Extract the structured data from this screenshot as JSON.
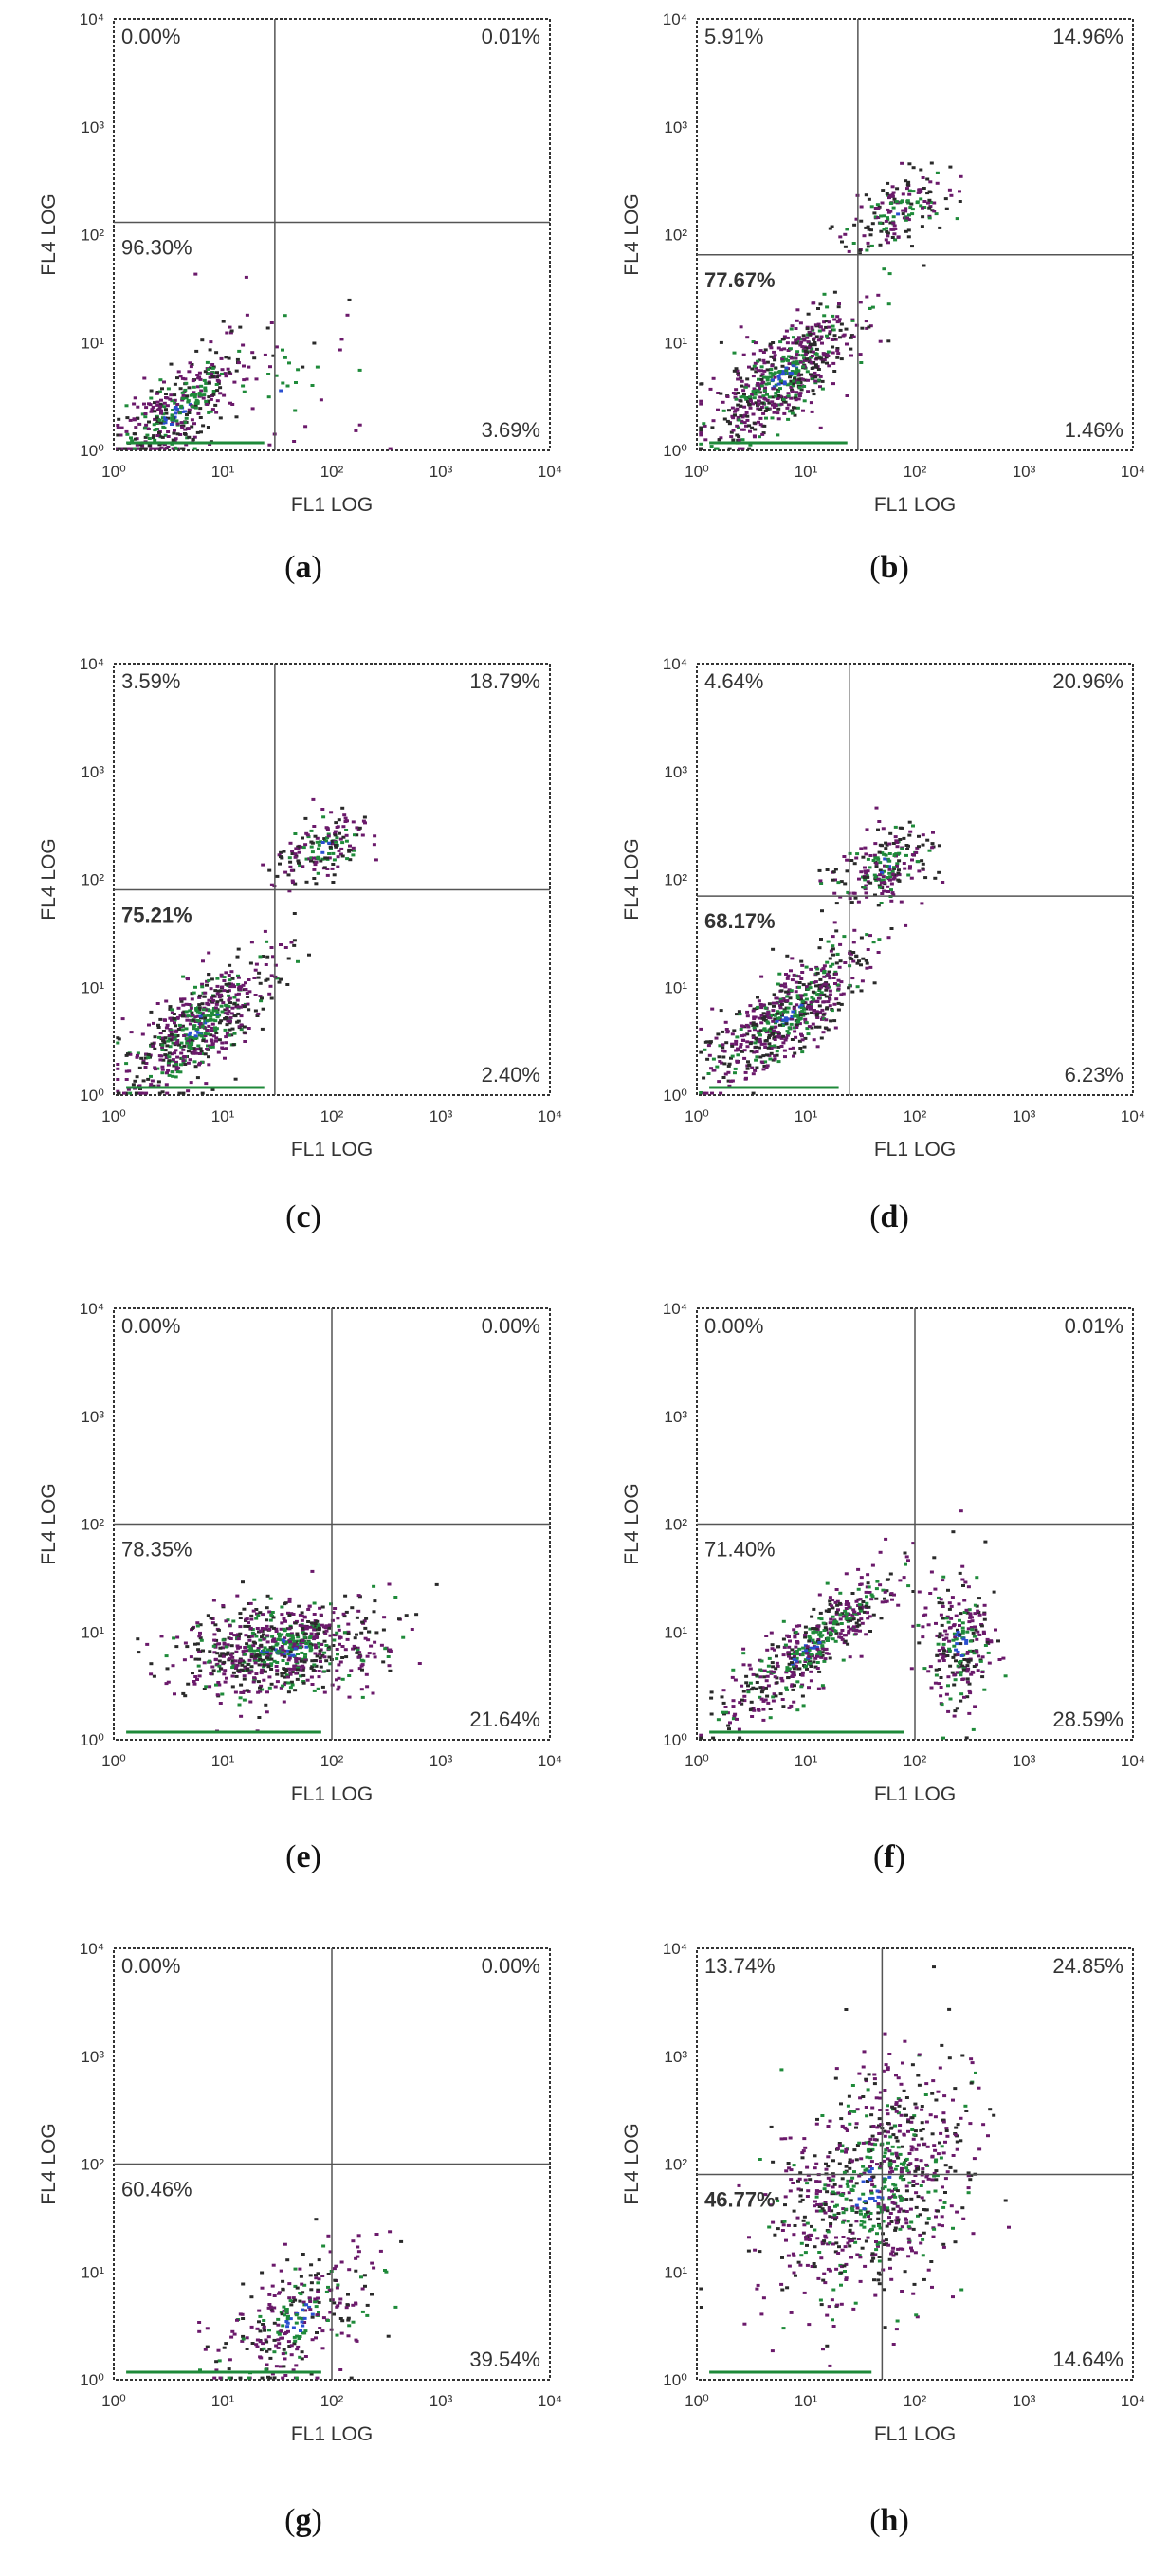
{
  "chart_data": [
    {
      "id": "a",
      "type": "scatter",
      "caption_letter": "a",
      "xlabel": "FL1 LOG",
      "ylabel": "FL4 LOG",
      "xlim": [
        1,
        10000
      ],
      "ylim": [
        1,
        10000
      ],
      "gate": {
        "x": 30,
        "y": 130
      },
      "quadrants": {
        "ul": "0.00%",
        "ur": "0.01%",
        "ll": "96.30%",
        "lr": "3.69%"
      },
      "clusters": [
        {
          "cx": 3.5,
          "cy": 2.2,
          "sx": 0.32,
          "sy": 0.3,
          "rho": 0.75,
          "n": 420
        },
        {
          "cx": 40,
          "cy": 5,
          "sx": 0.45,
          "sy": 0.45,
          "rho": 0.0,
          "n": 45
        }
      ],
      "x_ticks": [
        "10⁰",
        "10¹",
        "10²",
        "10³",
        "10⁴"
      ],
      "y_ticks": [
        "10⁰",
        "10¹",
        "10²",
        "10³",
        "10⁴"
      ]
    },
    {
      "id": "b",
      "type": "scatter",
      "caption_letter": "b",
      "xlabel": "FL1 LOG",
      "ylabel": "FL4 LOG",
      "xlim": [
        1,
        10000
      ],
      "ylim": [
        1,
        10000
      ],
      "gate": {
        "x": 30,
        "y": 65
      },
      "quadrants": {
        "ul": "5.91%",
        "ur": "14.96%",
        "ll": "77.67%",
        "lr": "1.46%"
      },
      "clusters": [
        {
          "cx": 6,
          "cy": 5,
          "sx": 0.35,
          "sy": 0.32,
          "rho": 0.75,
          "n": 650
        },
        {
          "cx": 70,
          "cy": 170,
          "sx": 0.25,
          "sy": 0.18,
          "rho": 0.5,
          "n": 180
        }
      ],
      "x_ticks": [
        "10⁰",
        "10¹",
        "10²",
        "10³",
        "10⁴"
      ],
      "y_ticks": [
        "10⁰",
        "10¹",
        "10²",
        "10³",
        "10⁴"
      ]
    },
    {
      "id": "c",
      "type": "scatter",
      "caption_letter": "c",
      "xlabel": "FL1 LOG",
      "ylabel": "FL4 LOG",
      "xlim": [
        1,
        10000
      ],
      "ylim": [
        1,
        10000
      ],
      "gate": {
        "x": 30,
        "y": 80
      },
      "quadrants": {
        "ul": "3.59%",
        "ur": "18.79%",
        "ll": "75.21%",
        "lr": "2.40%"
      },
      "clusters": [
        {
          "cx": 6,
          "cy": 4.5,
          "sx": 0.35,
          "sy": 0.32,
          "rho": 0.75,
          "n": 620
        },
        {
          "cx": 80,
          "cy": 200,
          "sx": 0.22,
          "sy": 0.16,
          "rho": 0.4,
          "n": 170
        }
      ],
      "x_ticks": [
        "10⁰",
        "10¹",
        "10²",
        "10³",
        "10⁴"
      ],
      "y_ticks": [
        "10⁰",
        "10¹",
        "10²",
        "10³",
        "10⁴"
      ]
    },
    {
      "id": "d",
      "type": "scatter",
      "caption_letter": "d",
      "xlabel": "FL1 LOG",
      "ylabel": "FL4 LOG",
      "xlim": [
        1,
        10000
      ],
      "ylim": [
        1,
        10000
      ],
      "gate": {
        "x": 25,
        "y": 70
      },
      "quadrants": {
        "ul": "4.64%",
        "ur": "20.96%",
        "ll": "68.17%",
        "lr": "6.23%"
      },
      "clusters": [
        {
          "cx": 7,
          "cy": 6,
          "sx": 0.35,
          "sy": 0.32,
          "rho": 0.75,
          "n": 620
        },
        {
          "cx": 50,
          "cy": 140,
          "sx": 0.25,
          "sy": 0.2,
          "rho": 0.5,
          "n": 220
        }
      ],
      "x_ticks": [
        "10⁰",
        "10¹",
        "10²",
        "10³",
        "10⁴"
      ],
      "y_ticks": [
        "10⁰",
        "10¹",
        "10²",
        "10³",
        "10⁴"
      ]
    },
    {
      "id": "e",
      "type": "scatter",
      "caption_letter": "e",
      "xlabel": "FL1 LOG",
      "ylabel": "FL4 LOG",
      "xlim": [
        1,
        10000
      ],
      "ylim": [
        1,
        10000
      ],
      "gate": {
        "x": 100,
        "y": 100
      },
      "quadrants": {
        "ul": "0.00%",
        "ur": "0.00%",
        "ll": "78.35%",
        "lr": "21.64%"
      },
      "clusters": [
        {
          "cx": 35,
          "cy": 7,
          "sx": 0.45,
          "sy": 0.22,
          "rho": 0.2,
          "n": 800
        }
      ],
      "x_ticks": [
        "10⁰",
        "10¹",
        "10²",
        "10³",
        "10⁴"
      ],
      "y_ticks": [
        "10⁰",
        "10¹",
        "10²",
        "10³",
        "10⁴"
      ]
    },
    {
      "id": "f",
      "type": "scatter",
      "caption_letter": "f",
      "xlabel": "FL1 LOG",
      "ylabel": "FL4 LOG",
      "xlim": [
        1,
        10000
      ],
      "ylim": [
        1,
        10000
      ],
      "gate": {
        "x": 100,
        "y": 100
      },
      "quadrants": {
        "ul": "0.00%",
        "ur": "0.01%",
        "ll": "71.40%",
        "lr": "28.59%"
      },
      "clusters": [
        {
          "cx": 10,
          "cy": 7,
          "sx": 0.42,
          "sy": 0.38,
          "rho": 0.9,
          "n": 520
        },
        {
          "cx": 250,
          "cy": 8,
          "sx": 0.15,
          "sy": 0.3,
          "rho": 0.0,
          "n": 260
        }
      ],
      "x_ticks": [
        "10⁰",
        "10¹",
        "10²",
        "10³",
        "10⁴"
      ],
      "y_ticks": [
        "10⁰",
        "10¹",
        "10²",
        "10³",
        "10⁴"
      ]
    },
    {
      "id": "g",
      "type": "scatter",
      "caption_letter": "g",
      "xlabel": "FL1 LOG",
      "ylabel": "FL4 LOG",
      "xlim": [
        1,
        10000
      ],
      "ylim": [
        1,
        10000
      ],
      "gate": {
        "x": 100,
        "y": 100
      },
      "quadrants": {
        "ul": "0.00%",
        "ur": "0.00%",
        "ll": "60.46%",
        "lr": "39.54%"
      },
      "clusters": [
        {
          "cx": 50,
          "cy": 4,
          "sx": 0.35,
          "sy": 0.32,
          "rho": 0.5,
          "n": 320
        }
      ],
      "x_ticks": [
        "10⁰",
        "10¹",
        "10²",
        "10³",
        "10⁴"
      ],
      "y_ticks": [
        "10⁰",
        "10¹",
        "10²",
        "10³",
        "10⁴"
      ]
    },
    {
      "id": "h",
      "type": "scatter",
      "caption_letter": "h",
      "xlabel": "FL1 LOG",
      "ylabel": "FL4 LOG",
      "xlim": [
        1,
        10000
      ],
      "ylim": [
        1,
        10000
      ],
      "gate": {
        "x": 50,
        "y": 80
      },
      "quadrants": {
        "ul": "13.74%",
        "ur": "24.85%",
        "ll": "46.77%",
        "lr": "14.64%"
      },
      "clusters": [
        {
          "cx": 40,
          "cy": 60,
          "sx": 0.45,
          "sy": 0.55,
          "rho": 0.35,
          "n": 850
        }
      ],
      "x_ticks": [
        "10⁰",
        "10¹",
        "10²",
        "10³",
        "10⁴"
      ],
      "y_ticks": [
        "10⁰",
        "10¹",
        "10²",
        "10³",
        "10⁴"
      ]
    }
  ],
  "colors": {
    "dot_purple": "#6b1a6b",
    "dot_dark": "#2a2a2a",
    "dot_green": "#1f8a3a",
    "dot_blue": "#2a4fd0",
    "axis": "#333333",
    "quad_line": "#555555",
    "text": "#333333"
  }
}
